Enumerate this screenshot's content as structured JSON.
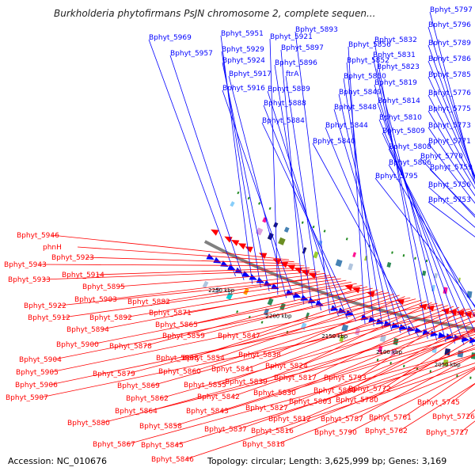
{
  "title": "Burkholderia phytofirmans PsJN chromosome 2, complete sequen...",
  "footer": {
    "accession_label": "Accession:",
    "accession": "NC_010676",
    "topology_label": "Topology:",
    "topology": "circular",
    "length_label": "Length:",
    "length": "3,625,999 bp",
    "genes_label": "Genes:",
    "genes": "3,169"
  },
  "colors": {
    "forward_strand": "#0000ff",
    "reverse_strand": "#ff0000",
    "backbone": "#808080",
    "marker": "#228b22"
  },
  "scale_labels": [
    "2250 kbp",
    "2200 kbp",
    "2150 kbp",
    "2100 kbp",
    "2050 kbp",
    "2000 kbp",
    "1950 kbp"
  ],
  "forward_gene_labels": [
    "Bphyt_5969",
    "Bphyt_5957",
    "Bphyt_5951",
    "Bphyt_5929",
    "Bphyt_5924",
    "Bphyt_5921",
    "Bphyt_5917",
    "Bphyt_5916",
    "Bphyt_5897",
    "Bphyt_5896",
    "ftrA",
    "Bphyt_5893",
    "Bphyt_5889",
    "Bphyt_5888",
    "Bphyt_5884",
    "Bphyt_5856",
    "Bphyt_5852",
    "Bphyt_5850",
    "Bphyt_5849",
    "Bphyt_5848",
    "Bphyt_5844",
    "Bphyt_5840",
    "Bphyt_5832",
    "Bphyt_5831",
    "Bphyt_5823",
    "Bphyt_5819",
    "Bphyt_5814",
    "Bphyt_5810",
    "Bphyt_5809",
    "Bphyt_5808",
    "Bphyt_5806",
    "Bphyt_5795",
    "Bphyt_5797",
    "Bphyt_5796",
    "Bphyt_5789",
    "Bphyt_5786",
    "Bphyt_5785",
    "Bphyt_5776",
    "Bphyt_5775",
    "Bphyt_5773",
    "Bphyt_5771",
    "Bphyt_5770",
    "Bphyt_5759",
    "Bphyt_5756",
    "Bphyt_5753"
  ],
  "reverse_gene_labels": [
    "Bphyt_5946",
    "phnH",
    "Bphyt_5923",
    "Bphyt_5943",
    "Bphyt_5914",
    "Bphyt_5933",
    "Bphyt_5895",
    "Bphyt_5903",
    "Bphyt_5882",
    "Bphyt_5922",
    "Bphyt_5912",
    "Bphyt_5892",
    "Bphyt_5894",
    "Bphyt_5871",
    "Bphyt_5865",
    "Bphyt_5878",
    "Bphyt_5900",
    "Bphyt_5859",
    "Bphyt_5847",
    "Bphyt_5904",
    "Bphyt_5868",
    "Bphyt_5854",
    "Bphyt_5838",
    "Bphyt_5905",
    "Bphyt_5879",
    "Bphyt_5860",
    "Bphyt_5841",
    "Bphyt_5824",
    "Bphyt_5906",
    "Bphyt_5869",
    "Bphyt_5855",
    "Bphyt_5839",
    "Bphyt_5817",
    "Bphyt_5793",
    "Bphyt_5907",
    "Bphyt_5862",
    "Bphyt_5842",
    "Bphyt_5830",
    "Bphyt_5800",
    "Bphyt_5772",
    "Bphyt_5864",
    "Bphyt_5803",
    "Bphyt_5780",
    "Bphyt_5827",
    "Bphyt_5843",
    "Bphyt_5880",
    "Bphyt_5858",
    "Bphyt_5812",
    "Bphyt_5787",
    "Bphyt_5761",
    "Bphyt_5745",
    "Bphyt_5837",
    "Bphyt_5816",
    "Bphyt_5790",
    "Bphyt_5762",
    "Bphyt_5726",
    "Bphyt_5867",
    "Bphyt_5845",
    "Bphyt_5818",
    "Bphyt_5727",
    "Bphyt_5846"
  ]
}
